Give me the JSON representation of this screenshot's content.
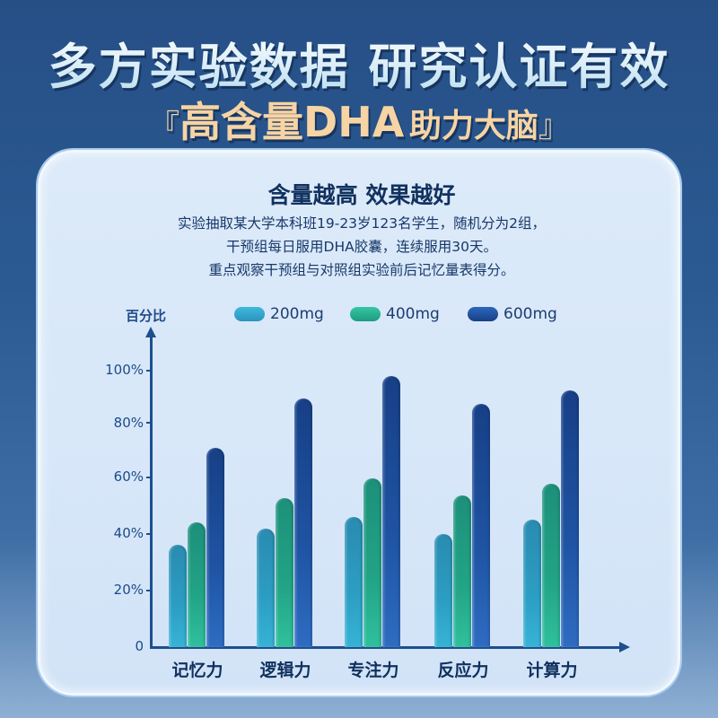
{
  "header": {
    "headline": "多方实验数据 研究认证有效",
    "subhead_open_quote": "『",
    "subhead_main": "高含量DHA",
    "subhead_secondary": "助力大脑",
    "subhead_close_quote": "』"
  },
  "card": {
    "title": "含量越高 效果越好",
    "description": [
      "实验抽取某大学本科班19-23岁123名学生，随机分为2组，",
      "干预组每日服用DHA胶囊，连续服用30天。",
      "重点观察干预组与对照组实验前后记忆量表得分。"
    ]
  },
  "colors": {
    "s200": "#2c9ec3",
    "s400": "#22a486",
    "s600": "#1f54a3",
    "axis": "#1d4f8e",
    "title_text": "#11325f",
    "subhead_gold": "#f6d4a4"
  },
  "chart_data": {
    "type": "bar",
    "title": "含量越高 效果越好",
    "ylabel": "百分比",
    "xlabel": "",
    "categories": [
      "记忆力",
      "逻辑力",
      "专注力",
      "反应力",
      "计算力"
    ],
    "series": [
      {
        "name": "200mg",
        "values": [
          37,
          43,
          47,
          41,
          46
        ]
      },
      {
        "name": "400mg",
        "values": [
          45,
          54,
          61,
          55,
          59
        ]
      },
      {
        "name": "600mg",
        "values": [
          72,
          90,
          98,
          88,
          93
        ]
      }
    ],
    "yticks": [
      "0",
      "20%",
      "40%",
      "60%",
      "80%",
      "100%"
    ],
    "ylim": [
      0,
      100
    ],
    "grid": false,
    "legend_position": "top"
  }
}
